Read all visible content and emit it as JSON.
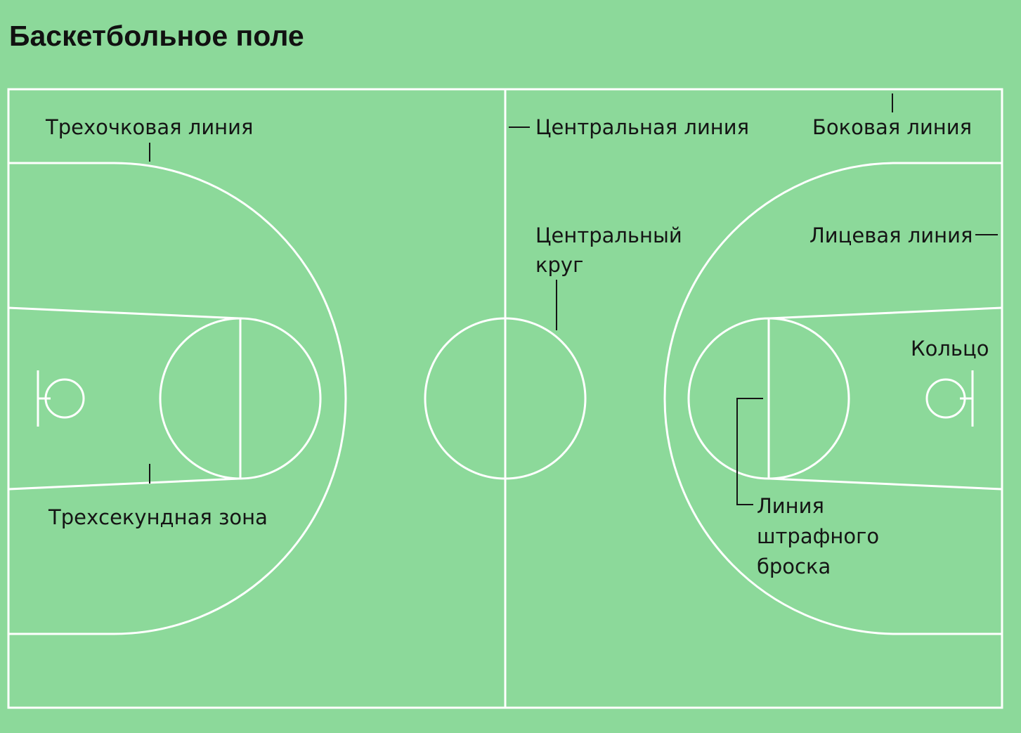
{
  "title": "Баскетбольное поле",
  "labels": {
    "three_point_line": "Трехочковая линия",
    "center_line": "Центральная линия",
    "sideline": "Боковая линия",
    "center_circle_line1": "Центральный",
    "center_circle_line2": "круг",
    "baseline": "Лицевая линия",
    "hoop": "Кольцо",
    "three_second_zone": "Трехсекундная зона",
    "free_throw_line1": "Линия",
    "free_throw_line2": "штрафного",
    "free_throw_line3": "броска"
  },
  "colors": {
    "background": "#8cd99a",
    "three_point_area": "#72cb86",
    "key_area": "#ff9a76",
    "court_lines": "#ffffff",
    "leader_lines": "#151515"
  }
}
